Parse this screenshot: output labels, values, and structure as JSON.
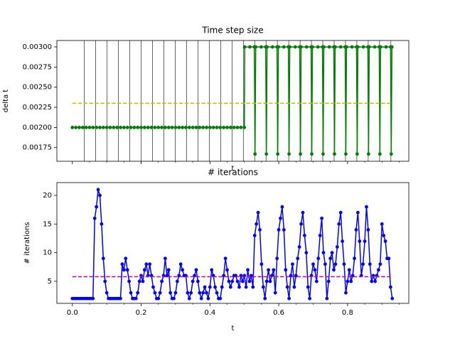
{
  "chart_data": [
    {
      "type": "line",
      "title": "Time step size",
      "x_label": "t",
      "y_label": "delta t",
      "xlim": [
        -0.045,
        0.978
      ],
      "ylim": [
        0.00158,
        0.00308
      ],
      "xticks": [
        0,
        0.2,
        0.4,
        0.6,
        0.8
      ],
      "xtick_labels": false,
      "xticks_minor": [
        0.05,
        0.1,
        0.15,
        0.25,
        0.3,
        0.35,
        0.45,
        0.5,
        0.55,
        0.65,
        0.7,
        0.75,
        0.85,
        0.9,
        0.95
      ],
      "yticks": [
        0.00175,
        {
          "value": 0.002,
          "label": "0.00200"
        },
        0.00225,
        {
          "value": 0.0025,
          "label": "0.00250"
        },
        0.00275,
        {
          "value": 0.003,
          "label": "0.00300"
        }
      ],
      "vlines": [
        0.035,
        0.068,
        0.101,
        0.134,
        0.167,
        0.2,
        0.233,
        0.266,
        0.299,
        0.332,
        0.365,
        0.398,
        0.431,
        0.464,
        0.497,
        0.53,
        0.563,
        0.596,
        0.629,
        0.662,
        0.695,
        0.728,
        0.761,
        0.794,
        0.827,
        0.86,
        0.893,
        0.926
      ],
      "vline_color": "#000000",
      "series": [
        {
          "color": "#008000",
          "marker": true,
          "style": "solid",
          "x": [
            0,
            0.01,
            0.02,
            0.03,
            0.04,
            0.05,
            0.06,
            0.07,
            0.08,
            0.09,
            0.1,
            0.11,
            0.12,
            0.13,
            0.14,
            0.15,
            0.16,
            0.17,
            0.18,
            0.19,
            0.2,
            0.21,
            0.22,
            0.23,
            0.24,
            0.25,
            0.26,
            0.27,
            0.28,
            0.29,
            0.3,
            0.31,
            0.32,
            0.33,
            0.34,
            0.35,
            0.36,
            0.37,
            0.38,
            0.39,
            0.4,
            0.41,
            0.42,
            0.43,
            0.44,
            0.45,
            0.46,
            0.47,
            0.48,
            0.49,
            0.5,
            0.501,
            0.516,
            0.529,
            0.531,
            0.533,
            0.549,
            0.562,
            0.564,
            0.566,
            0.582,
            0.595,
            0.597,
            0.599,
            0.615,
            0.628,
            0.63,
            0.632,
            0.648,
            0.661,
            0.663,
            0.665,
            0.681,
            0.694,
            0.696,
            0.698,
            0.714,
            0.727,
            0.729,
            0.731,
            0.747,
            0.76,
            0.762,
            0.764,
            0.78,
            0.793,
            0.795,
            0.797,
            0.813,
            0.826,
            0.828,
            0.83,
            0.846,
            0.859,
            0.861,
            0.863,
            0.879,
            0.892,
            0.894,
            0.896,
            0.912,
            0.925,
            0.927,
            0.929
          ],
          "values": [
            0.002,
            0.002,
            0.002,
            0.002,
            0.002,
            0.002,
            0.002,
            0.002,
            0.002,
            0.002,
            0.002,
            0.002,
            0.002,
            0.002,
            0.002,
            0.002,
            0.002,
            0.002,
            0.002,
            0.002,
            0.002,
            0.002,
            0.002,
            0.002,
            0.002,
            0.002,
            0.002,
            0.002,
            0.002,
            0.002,
            0.002,
            0.002,
            0.002,
            0.002,
            0.002,
            0.002,
            0.002,
            0.002,
            0.002,
            0.002,
            0.002,
            0.002,
            0.002,
            0.002,
            0.002,
            0.002,
            0.002,
            0.002,
            0.002,
            0.002,
            0.002,
            0.003,
            0.003,
            0.003,
            0.00167,
            0.003,
            0.003,
            0.003,
            0.00167,
            0.003,
            0.003,
            0.003,
            0.00167,
            0.003,
            0.003,
            0.003,
            0.00167,
            0.003,
            0.003,
            0.003,
            0.00167,
            0.003,
            0.003,
            0.003,
            0.00167,
            0.003,
            0.003,
            0.003,
            0.00167,
            0.003,
            0.003,
            0.003,
            0.00167,
            0.003,
            0.003,
            0.003,
            0.00167,
            0.003,
            0.003,
            0.003,
            0.00167,
            0.003,
            0.003,
            0.003,
            0.00167,
            0.003,
            0.003,
            0.003,
            0.00167,
            0.003,
            0.003,
            0.003,
            0.00167,
            0.003
          ]
        },
        {
          "color": "#bfbf00",
          "marker": false,
          "style": "dashed",
          "x": [
            0,
            0.93
          ],
          "values": [
            0.0023,
            0.0023
          ]
        }
      ]
    },
    {
      "type": "line",
      "title": "# iterations",
      "x_label": "t",
      "y_label": "# iterations",
      "xlim": [
        -0.045,
        0.978
      ],
      "ylim": [
        1.16,
        22.23
      ],
      "xticks": [
        {
          "value": 0,
          "label": "0.0"
        },
        0.2,
        0.4,
        0.6,
        0.8
      ],
      "xtick_labels": true,
      "xticks_minor": [
        0.05,
        0.1,
        0.15,
        0.25,
        0.3,
        0.35,
        0.45,
        0.5,
        0.55,
        0.65,
        0.7,
        0.75,
        0.85,
        0.9,
        0.95
      ],
      "yticks": [
        5,
        10,
        15,
        20
      ],
      "series": [
        {
          "color": "#0000ff",
          "marker": true,
          "style": "solid",
          "x": [
            0,
            0.005,
            0.01,
            0.015,
            0.02,
            0.025,
            0.03,
            0.035,
            0.04,
            0.045,
            0.05,
            0.055,
            0.06,
            0.065,
            0.07,
            0.075,
            0.08,
            0.085,
            0.09,
            0.095,
            0.1,
            0.105,
            0.11,
            0.115,
            0.12,
            0.125,
            0.13,
            0.135,
            0.14,
            0.145,
            0.15,
            0.155,
            0.16,
            0.165,
            0.17,
            0.175,
            0.18,
            0.185,
            0.19,
            0.195,
            0.2,
            0.205,
            0.21,
            0.215,
            0.22,
            0.225,
            0.23,
            0.235,
            0.24,
            0.245,
            0.25,
            0.255,
            0.26,
            0.265,
            0.27,
            0.275,
            0.28,
            0.285,
            0.29,
            0.295,
            0.3,
            0.305,
            0.31,
            0.315,
            0.32,
            0.325,
            0.33,
            0.335,
            0.34,
            0.345,
            0.35,
            0.355,
            0.36,
            0.365,
            0.37,
            0.375,
            0.38,
            0.385,
            0.39,
            0.395,
            0.4,
            0.405,
            0.41,
            0.415,
            0.42,
            0.425,
            0.43,
            0.435,
            0.44,
            0.445,
            0.45,
            0.455,
            0.46,
            0.465,
            0.47,
            0.475,
            0.48,
            0.485,
            0.49,
            0.495,
            0.5,
            0.505,
            0.51,
            0.515,
            0.52,
            0.525,
            0.53,
            0.535,
            0.54,
            0.545,
            0.55,
            0.555,
            0.56,
            0.565,
            0.57,
            0.575,
            0.58,
            0.585,
            0.59,
            0.595,
            0.6,
            0.605,
            0.61,
            0.615,
            0.62,
            0.625,
            0.63,
            0.635,
            0.64,
            0.645,
            0.65,
            0.655,
            0.66,
            0.665,
            0.67,
            0.675,
            0.68,
            0.685,
            0.69,
            0.695,
            0.7,
            0.705,
            0.71,
            0.715,
            0.72,
            0.725,
            0.73,
            0.735,
            0.74,
            0.745,
            0.75,
            0.755,
            0.76,
            0.765,
            0.77,
            0.775,
            0.78,
            0.785,
            0.79,
            0.795,
            0.8,
            0.805,
            0.81,
            0.815,
            0.82,
            0.825,
            0.83,
            0.835,
            0.84,
            0.845,
            0.85,
            0.855,
            0.86,
            0.865,
            0.87,
            0.875,
            0.88,
            0.885,
            0.89,
            0.895,
            0.9,
            0.905,
            0.91,
            0.915,
            0.92,
            0.925,
            0.93
          ],
          "values": [
            2,
            2,
            2,
            2,
            2,
            2,
            2,
            2,
            2,
            2,
            2,
            2,
            2,
            16,
            18,
            21,
            20,
            15,
            9,
            5,
            3,
            2,
            2,
            2,
            2,
            2,
            2,
            2,
            2,
            8,
            7,
            9,
            7,
            5,
            3,
            2,
            2,
            2,
            3,
            5,
            6,
            5,
            7,
            8,
            6,
            8,
            6,
            4,
            3,
            2,
            2,
            3,
            5,
            6,
            9,
            6,
            7,
            3,
            2,
            2,
            3,
            5,
            6,
            8,
            7,
            6,
            6,
            3,
            2,
            3,
            5,
            6,
            7,
            5,
            3,
            2,
            3,
            4,
            3,
            2,
            4,
            7,
            6,
            4,
            3,
            2,
            2,
            4,
            6,
            9,
            7,
            5,
            4,
            5,
            6,
            6,
            5,
            4,
            6,
            5,
            6,
            4,
            7,
            5,
            6,
            4,
            13,
            15,
            17,
            14,
            8,
            4,
            2,
            5,
            7,
            5,
            6,
            7,
            3,
            9,
            14,
            16,
            18,
            14,
            7,
            4,
            2,
            6,
            8,
            4,
            6,
            9,
            11,
            15,
            17,
            13,
            10,
            4,
            2,
            6,
            8,
            7,
            5,
            9,
            13,
            16,
            10,
            8,
            2,
            5,
            9,
            10,
            7,
            8,
            11,
            15,
            17,
            12,
            8,
            3,
            5,
            7,
            5,
            6,
            9,
            14,
            17,
            12,
            6,
            8,
            12,
            18,
            14,
            8,
            5,
            6,
            5,
            6,
            7,
            8,
            15,
            13,
            12,
            9,
            9,
            4,
            2
          ]
        },
        {
          "color": "#bf00bf",
          "marker": false,
          "style": "dashed",
          "x": [
            0,
            0.93
          ],
          "values": [
            5.8,
            5.8
          ]
        }
      ]
    }
  ]
}
